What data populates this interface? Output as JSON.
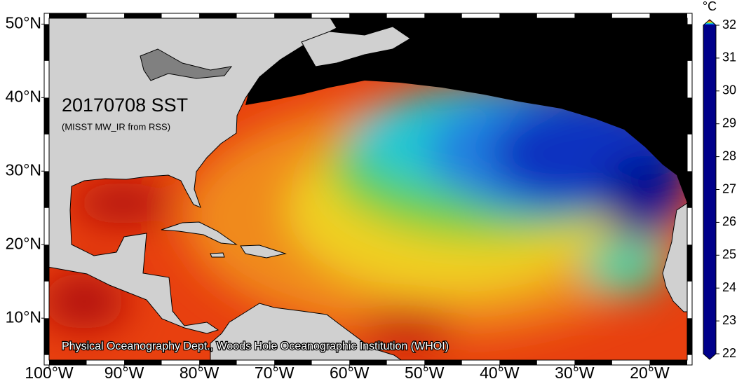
{
  "map": {
    "title": "20170708 SST",
    "subtitle": "(MISST MW_IR from RSS)",
    "credit": "Physical Oceanography Dept., Woods Hole Oceanographic Institution (WHOI)",
    "lonlim": [
      -100,
      -15
    ],
    "latlim": [
      4.3,
      50.8
    ],
    "lon_ticks": [
      {
        "value": -100,
        "label": "100°W"
      },
      {
        "value": -90,
        "label": "90°W"
      },
      {
        "value": -80,
        "label": "80°W"
      },
      {
        "value": -70,
        "label": "70°W"
      },
      {
        "value": -60,
        "label": "60°W"
      },
      {
        "value": -50,
        "label": "50°W"
      },
      {
        "value": -40,
        "label": "40°W"
      },
      {
        "value": -30,
        "label": "30°W"
      },
      {
        "value": -20,
        "label": "20°W"
      }
    ],
    "lat_ticks": [
      {
        "value": 10,
        "label": "10°N"
      },
      {
        "value": 20,
        "label": "20°N"
      },
      {
        "value": 30,
        "label": "30°N"
      },
      {
        "value": 40,
        "label": "40°N"
      },
      {
        "value": 50,
        "label": "50°N"
      }
    ]
  },
  "colorbar": {
    "unit": "°C",
    "range": [
      22,
      32
    ],
    "ticks": [
      22,
      23,
      24,
      25,
      26,
      27,
      28,
      29,
      30,
      31,
      32
    ],
    "colormap": [
      "#00008a",
      "#0020d0",
      "#1070f0",
      "#10c0e8",
      "#30e070",
      "#e8f020",
      "#f8b010",
      "#f07010",
      "#e02010",
      "#a00808",
      "#200000"
    ]
  }
}
